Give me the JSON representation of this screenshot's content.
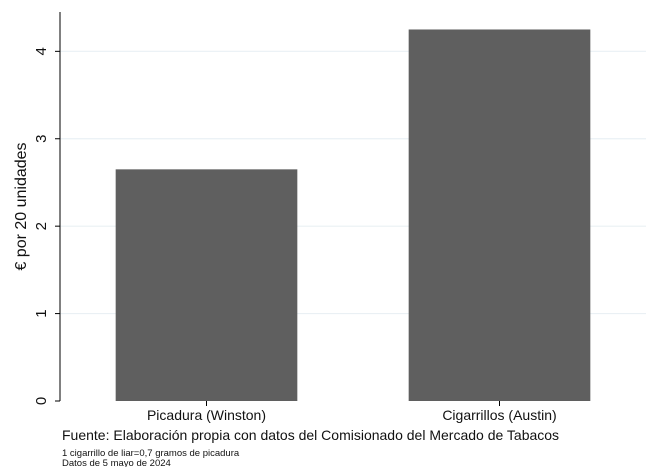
{
  "chart_data": {
    "type": "bar",
    "categories": [
      "Picadura (Winston)",
      "Cigarrillos (Austin)"
    ],
    "values": [
      2.65,
      4.25
    ],
    "title": "",
    "xlabel": "",
    "ylabel": "€ por 20 unidades",
    "ylim": [
      0,
      4.45
    ],
    "yticks": [
      0,
      1,
      2,
      3,
      4
    ],
    "grid": true,
    "bar_color": "#5f5f5f",
    "grid_color": "#eaf0f4"
  },
  "notes": {
    "source": "Fuente: Elaboración propia con datos del Comisionado del Mercado de Tabacos",
    "line1": "1 cigarrillo de liar=0,7 gramos de picadura",
    "line2": "Datos de 5 mayo de 2024"
  }
}
